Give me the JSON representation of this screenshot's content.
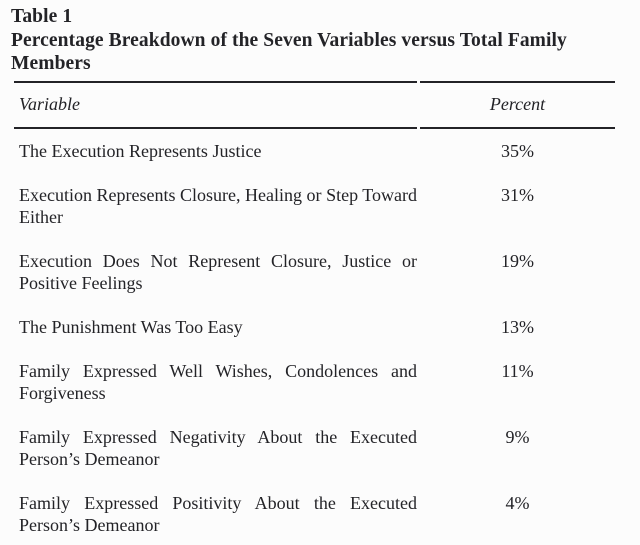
{
  "table": {
    "label": "Table 1",
    "title": "Percentage Breakdown of the Seven Variables versus Total Family Members",
    "columns": {
      "variable": "Variable",
      "percent": "Percent"
    },
    "rows": [
      {
        "variable": "The Execution Represents Justice",
        "percent": "35%"
      },
      {
        "variable": "Execution Represents Closure, Healing or Step Toward Either",
        "percent": "31%"
      },
      {
        "variable": "Execution Does Not Represent Closure, Justice or Positive Feelings",
        "percent": "19%"
      },
      {
        "variable": "The Punishment Was Too Easy",
        "percent": "13%"
      },
      {
        "variable": "Family Expressed Well Wishes, Condolences and Forgiveness",
        "percent": "11%"
      },
      {
        "variable": "Family Expressed Negativity About the Executed Person’s Demeanor",
        "percent": "9%"
      },
      {
        "variable": "Family Expressed Positivity About the Executed Person’s Demeanor",
        "percent": "4%"
      }
    ]
  },
  "colors": {
    "text": "#232327",
    "rule": "#232327",
    "background": "#fcfcfc"
  }
}
